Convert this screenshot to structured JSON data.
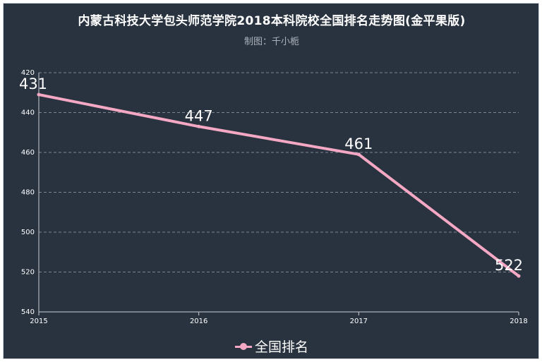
{
  "chart_data": {
    "type": "line",
    "title": "内蒙古科技大学包头师范学院2018本科院校全国排名走势图(金平果版)",
    "subtitle": "制图：千小栀",
    "x": [
      "2015",
      "2016",
      "2017",
      "2018"
    ],
    "series": [
      {
        "name": "全国排名",
        "values": [
          431,
          447,
          461,
          522
        ],
        "color": "#f4a8c4"
      }
    ],
    "y_ticks": [
      "420",
      "440",
      "460",
      "480",
      "500",
      "520",
      "540"
    ],
    "ylim": [
      420,
      540
    ],
    "y_inverted": true,
    "grid": true,
    "legend_position": "bottom"
  }
}
